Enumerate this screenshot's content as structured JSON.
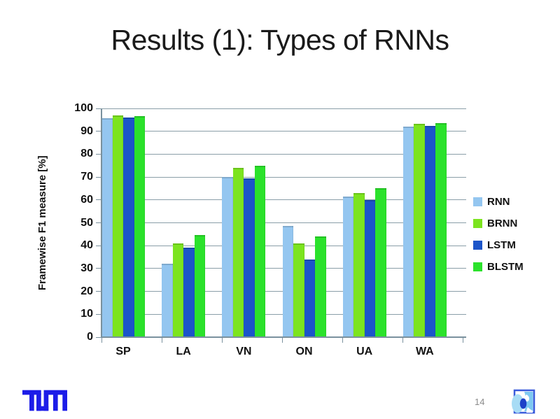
{
  "slide": {
    "title": "Results (1): Types of RNNs",
    "page_number": "14"
  },
  "chart_data": {
    "type": "bar",
    "title": "",
    "xlabel": "",
    "ylabel": "Framewise F1 measure [%]",
    "ylim": [
      0,
      100
    ],
    "yticks": [
      0,
      10,
      20,
      30,
      40,
      50,
      60,
      70,
      80,
      90,
      100
    ],
    "grid": true,
    "legend_position": "right",
    "categories": [
      "SP",
      "LA",
      "VN",
      "ON",
      "UA",
      "WA"
    ],
    "series": [
      {
        "name": "RNN",
        "color": "#94C6F0",
        "values": [
          95.8,
          32,
          70,
          48.5,
          61.5,
          92
        ]
      },
      {
        "name": "BRNN",
        "color": "#7CE41F",
        "values": [
          96.9,
          41,
          74,
          41,
          63,
          93.4
        ]
      },
      {
        "name": "LSTM",
        "color": "#1C55C9",
        "values": [
          96.1,
          39,
          69.5,
          34,
          60,
          92.3
        ]
      },
      {
        "name": "BLSTM",
        "color": "#2BE22B",
        "values": [
          96.7,
          44.5,
          75,
          44,
          65,
          93.5
        ]
      }
    ]
  },
  "colors": {
    "grid": "#8a9ea8",
    "axis": "#7a919e",
    "tum_blue": "#1C1CE8",
    "mmk_border": "#3A5BDB",
    "mmk_fill": "#7EC9F1",
    "mmk_fan": "#A8DCF5",
    "mmk_core": "#1D41C8"
  }
}
